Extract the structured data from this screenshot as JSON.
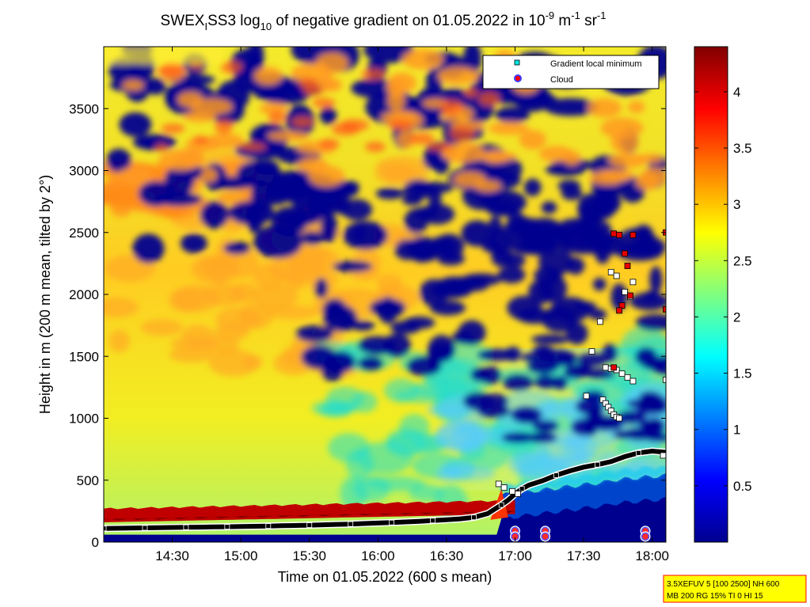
{
  "chart_data": {
    "type": "heatmap",
    "title": {
      "prefix": "SWEX",
      "prefix_sub": "I",
      "mid": "SS3 log",
      "mid_sub": "10",
      "main": " of negative gradient on 01.05.2022 in 10",
      "exp1": "-9",
      "unit_m": " m",
      "exp2": "-1",
      "unit_sr": " sr",
      "exp3": "-1"
    },
    "xlabel": "Time on 01.05.2022 (600 s mean)",
    "ylabel": "Height in m (200 m mean, tilted by 2°)",
    "x_range_hours": [
      14.0,
      18.1
    ],
    "y_range_m": [
      0,
      4000
    ],
    "x_ticks": [
      {
        "value": 14.5,
        "label": "14:30"
      },
      {
        "value": 15.0,
        "label": "15:00"
      },
      {
        "value": 15.5,
        "label": "15:30"
      },
      {
        "value": 16.0,
        "label": "16:00"
      },
      {
        "value": 16.5,
        "label": "16:30"
      },
      {
        "value": 17.0,
        "label": "17:00"
      },
      {
        "value": 17.5,
        "label": "17:30"
      },
      {
        "value": 18.0,
        "label": "18:00"
      }
    ],
    "y_ticks": [
      {
        "value": 0,
        "label": "0"
      },
      {
        "value": 500,
        "label": "500"
      },
      {
        "value": 1000,
        "label": "1000"
      },
      {
        "value": 1500,
        "label": "1500"
      },
      {
        "value": 2000,
        "label": "2000"
      },
      {
        "value": 2500,
        "label": "2500"
      },
      {
        "value": 3000,
        "label": "3000"
      },
      {
        "value": 3500,
        "label": "3500"
      }
    ],
    "colorbar": {
      "range": [
        0,
        4.4
      ],
      "ticks": [
        {
          "value": 0.5,
          "label": "0.5"
        },
        {
          "value": 1.0,
          "label": "1"
        },
        {
          "value": 1.5,
          "label": "1.5"
        },
        {
          "value": 2.0,
          "label": "2"
        },
        {
          "value": 2.5,
          "label": "2.5"
        },
        {
          "value": 3.0,
          "label": "3"
        },
        {
          "value": 3.5,
          "label": "3.5"
        },
        {
          "value": 4.0,
          "label": "4"
        }
      ]
    },
    "legend": {
      "placement": "top-right",
      "entries": [
        {
          "name": "Gradient local minimum",
          "marker": "square",
          "color": "#00e5e5"
        },
        {
          "name": "Cloud",
          "marker": "circle",
          "color": "#ff0000",
          "edge": "#3a3aff"
        }
      ]
    },
    "gradient_minimum": [
      [
        14.0,
        110
      ],
      [
        14.1,
        112
      ],
      [
        14.2,
        113
      ],
      [
        14.3,
        115
      ],
      [
        14.4,
        117
      ],
      [
        14.5,
        118
      ],
      [
        14.6,
        120
      ],
      [
        14.7,
        121
      ],
      [
        14.8,
        123
      ],
      [
        14.9,
        124
      ],
      [
        15.0,
        126
      ],
      [
        15.1,
        128
      ],
      [
        15.2,
        130
      ],
      [
        15.3,
        132
      ],
      [
        15.4,
        134
      ],
      [
        15.5,
        137
      ],
      [
        15.6,
        140
      ],
      [
        15.7,
        143
      ],
      [
        15.8,
        146
      ],
      [
        15.9,
        150
      ],
      [
        16.0,
        154
      ],
      [
        16.1,
        158
      ],
      [
        16.2,
        163
      ],
      [
        16.3,
        168
      ],
      [
        16.4,
        174
      ],
      [
        16.5,
        180
      ],
      [
        16.6,
        188
      ],
      [
        16.7,
        200
      ],
      [
        16.8,
        230
      ],
      [
        16.85,
        265
      ],
      [
        16.9,
        300
      ],
      [
        16.95,
        340
      ],
      [
        17.0,
        390
      ],
      [
        17.05,
        430
      ],
      [
        17.1,
        460
      ],
      [
        17.2,
        495
      ],
      [
        17.3,
        540
      ],
      [
        17.4,
        575
      ],
      [
        17.5,
        605
      ],
      [
        17.6,
        625
      ],
      [
        17.7,
        650
      ],
      [
        17.8,
        690
      ],
      [
        17.9,
        720
      ],
      [
        18.0,
        735
      ],
      [
        18.1,
        725
      ]
    ],
    "upper_minima": [
      [
        17.52,
        1180
      ],
      [
        17.56,
        1540
      ],
      [
        17.62,
        1780
      ],
      [
        17.64,
        1150
      ],
      [
        17.66,
        1120
      ],
      [
        17.68,
        1090
      ],
      [
        17.7,
        1060
      ],
      [
        17.72,
        1030
      ],
      [
        17.74,
        1010
      ],
      [
        17.76,
        1000
      ],
      [
        17.66,
        1410
      ],
      [
        17.7,
        1400
      ],
      [
        17.74,
        1390
      ],
      [
        17.78,
        1360
      ],
      [
        17.82,
        1330
      ],
      [
        17.86,
        1300
      ],
      [
        17.7,
        2180
      ],
      [
        17.74,
        2150
      ],
      [
        17.8,
        2020
      ],
      [
        17.84,
        1980
      ],
      [
        17.86,
        2100
      ],
      [
        18.1,
        1880
      ],
      [
        18.1,
        1310
      ],
      [
        18.08,
        700
      ],
      [
        16.88,
        470
      ],
      [
        16.92,
        440
      ],
      [
        16.98,
        410
      ],
      [
        17.02,
        390
      ]
    ],
    "cloud_markers_red": [
      [
        17.72,
        2490
      ],
      [
        17.76,
        2480
      ],
      [
        17.8,
        2330
      ],
      [
        17.82,
        2230
      ],
      [
        17.84,
        1990
      ],
      [
        17.78,
        1910
      ],
      [
        17.76,
        1870
      ],
      [
        17.72,
        1410
      ],
      [
        18.1,
        2500
      ],
      [
        18.1,
        1880
      ],
      [
        17.86,
        2480
      ]
    ],
    "clouds": [
      [
        17.0,
        90
      ],
      [
        17.0,
        45
      ],
      [
        17.22,
        90
      ],
      [
        17.22,
        45
      ],
      [
        17.95,
        90
      ],
      [
        17.95,
        45
      ]
    ],
    "info_box": {
      "line1": "3.5XEFUV 5 [100 2500] NH 600",
      "line2": "MB 200 RG 15% TI 0 HI 15"
    }
  }
}
